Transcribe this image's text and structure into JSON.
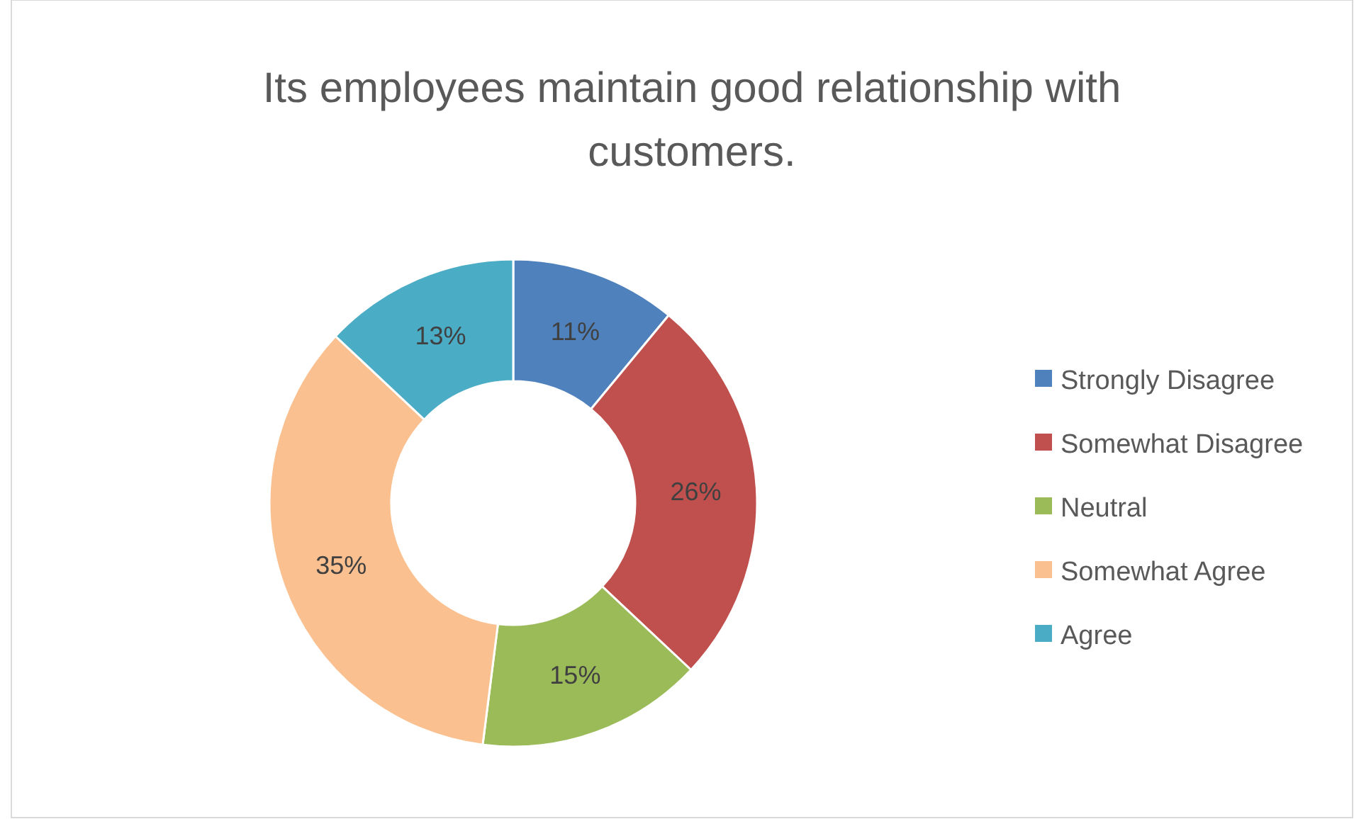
{
  "chart_data": {
    "type": "donut",
    "title": "Its employees maintain good relationship with customers.",
    "categories": [
      "Strongly Disagree",
      "Somewhat Disagree",
      "Neutral",
      "Somewhat Agree",
      "Agree"
    ],
    "values": [
      11,
      26,
      15,
      35,
      13
    ],
    "colors": [
      "#4f81bd",
      "#c0504d",
      "#9bbb59",
      "#fac090",
      "#4bacc6"
    ],
    "value_labels": [
      "11%",
      "26%",
      "15%",
      "35%",
      "13%"
    ],
    "legend": "right"
  }
}
